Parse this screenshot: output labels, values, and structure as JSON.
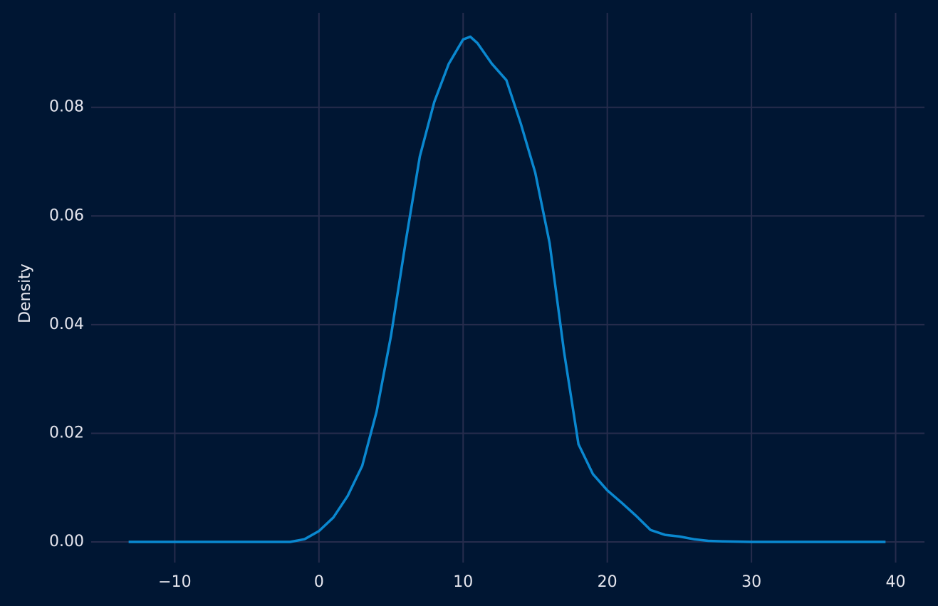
{
  "chart_data": {
    "type": "line",
    "y_label": "Density",
    "x": [
      -13.2,
      -2,
      -1,
      0,
      1,
      2,
      3,
      4,
      5,
      6,
      7,
      8,
      9,
      10,
      10.5,
      11,
      12,
      13,
      14,
      15,
      16,
      17,
      18,
      19,
      20,
      21,
      22,
      23,
      24,
      25,
      26,
      27,
      28,
      30,
      39.3
    ],
    "values": [
      0,
      0,
      0.0005,
      0.002,
      0.0045,
      0.0085,
      0.014,
      0.024,
      0.038,
      0.055,
      0.071,
      0.081,
      0.088,
      0.0925,
      0.093,
      0.0918,
      0.088,
      0.085,
      0.077,
      0.068,
      0.055,
      0.035,
      0.018,
      0.0125,
      0.0095,
      0.0072,
      0.0048,
      0.0022,
      0.0013,
      0.001,
      0.0005,
      0.0002,
      0.0001,
      0,
      0
    ],
    "color": "#0a88d0",
    "xlim": [
      -15.8,
      42.0
    ],
    "ylim": [
      -0.0038,
      0.0974
    ],
    "xticks": [
      {
        "value": -10,
        "label": "−10"
      },
      0,
      10,
      20,
      30,
      40
    ],
    "yticks": [
      {
        "value": 0,
        "label": "0.00"
      },
      0.02,
      0.04,
      0.06,
      0.08
    ],
    "grid": true,
    "grid_color": "#262c4c"
  }
}
